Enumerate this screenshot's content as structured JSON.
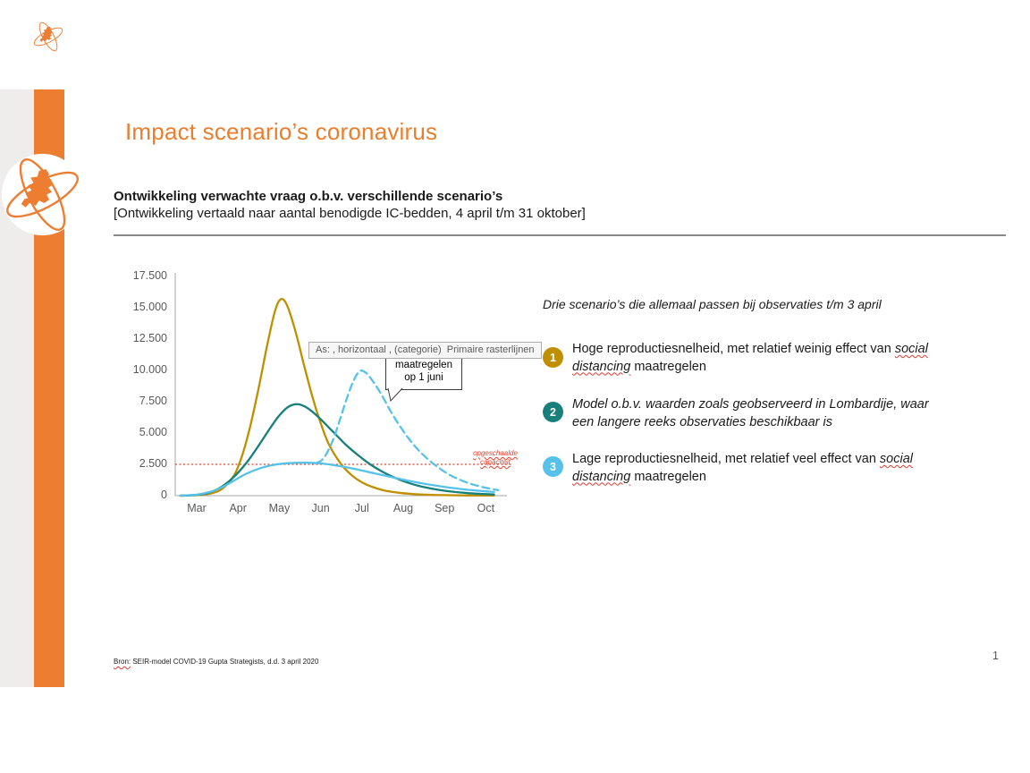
{
  "slide": {
    "title": "Impact scenario’s coronavirus",
    "subtitle_bold": "Ontwikkeling verwachte vraag o.b.v. verschillende scenario’s",
    "subtitle_detail": "[Ontwikkeling vertaald naar aantal benodigde IC-bedden, 4 april t/m 31 oktober]",
    "page_number": "1",
    "footer_segments": [
      {
        "text": "Bron:",
        "squiggle": true
      },
      {
        "text": " SEIR-model COVID-19 Gupta Strategists, d.d. 3 april 2020"
      }
    ]
  },
  "tooltip": {
    "text": "As: , horizontaal , (categorie)  Primaire rasterlijnen"
  },
  "chart_data": {
    "type": "line",
    "x_ticks": [
      "Mar",
      "Apr",
      "May",
      "Jun",
      "Jul",
      "Aug",
      "Sep",
      "Oct"
    ],
    "y_ticks": [
      "0",
      "2.500",
      "5.000",
      "7.500",
      "10.000",
      "12.500",
      "15.000",
      "17.500"
    ],
    "ylim": [
      0,
      17500
    ],
    "y_tick_step": 2500,
    "grid": "off",
    "capacity_line": {
      "value": 2500,
      "color": "#E8402C",
      "label_line1": "opgeschaalde",
      "label_line2": "capaciteit"
    },
    "annotations": {
      "callout": {
        "line1": "maatregelen",
        "line2": "op 1 juni"
      }
    },
    "series": [
      {
        "name": "scenario-1-hoge-reproductiesnelheid",
        "color": "#BF8F00",
        "dash": "none",
        "points": [
          [
            2.6,
            0
          ],
          [
            3.0,
            40
          ],
          [
            3.3,
            150
          ],
          [
            3.6,
            500
          ],
          [
            3.9,
            1600
          ],
          [
            4.1,
            3200
          ],
          [
            4.3,
            5600
          ],
          [
            4.5,
            8600
          ],
          [
            4.7,
            11900
          ],
          [
            4.9,
            14800
          ],
          [
            5.05,
            15700
          ],
          [
            5.2,
            15100
          ],
          [
            5.4,
            13000
          ],
          [
            5.6,
            10400
          ],
          [
            5.8,
            7900
          ],
          [
            6.0,
            5800
          ],
          [
            6.2,
            4100
          ],
          [
            6.5,
            2500
          ],
          [
            6.8,
            1500
          ],
          [
            7.1,
            900
          ],
          [
            7.5,
            450
          ],
          [
            7.9,
            230
          ],
          [
            8.4,
            100
          ],
          [
            9.0,
            40
          ],
          [
            9.6,
            15
          ],
          [
            10.2,
            5
          ]
        ]
      },
      {
        "name": "scenario-2-lombardije",
        "color": "#17807A",
        "dash": "none",
        "points": [
          [
            2.6,
            0
          ],
          [
            3.0,
            60
          ],
          [
            3.3,
            250
          ],
          [
            3.6,
            700
          ],
          [
            3.9,
            1500
          ],
          [
            4.2,
            2600
          ],
          [
            4.5,
            4000
          ],
          [
            4.8,
            5500
          ],
          [
            5.0,
            6400
          ],
          [
            5.2,
            7050
          ],
          [
            5.4,
            7300
          ],
          [
            5.6,
            7150
          ],
          [
            5.8,
            6700
          ],
          [
            6.0,
            6100
          ],
          [
            6.3,
            5100
          ],
          [
            6.6,
            4100
          ],
          [
            6.9,
            3250
          ],
          [
            7.2,
            2500
          ],
          [
            7.5,
            1900
          ],
          [
            7.8,
            1420
          ],
          [
            8.1,
            1050
          ],
          [
            8.4,
            760
          ],
          [
            8.7,
            550
          ],
          [
            9.0,
            390
          ],
          [
            9.3,
            280
          ],
          [
            9.6,
            195
          ],
          [
            9.9,
            135
          ],
          [
            10.2,
            95
          ]
        ]
      },
      {
        "name": "scenario-3-lage-reproductiesnelheid",
        "color": "#56C2E9",
        "dash": "none",
        "points": [
          [
            2.6,
            0
          ],
          [
            3.0,
            80
          ],
          [
            3.3,
            280
          ],
          [
            3.6,
            650
          ],
          [
            3.9,
            1200
          ],
          [
            4.2,
            1750
          ],
          [
            4.5,
            2150
          ],
          [
            4.8,
            2420
          ],
          [
            5.1,
            2560
          ],
          [
            5.4,
            2620
          ],
          [
            5.7,
            2630
          ],
          [
            6.0,
            2570
          ],
          [
            6.3,
            2450
          ],
          [
            6.6,
            2280
          ],
          [
            6.9,
            2080
          ],
          [
            7.2,
            1860
          ],
          [
            7.5,
            1640
          ],
          [
            7.8,
            1420
          ],
          [
            8.1,
            1210
          ],
          [
            8.4,
            1020
          ],
          [
            8.7,
            850
          ],
          [
            9.0,
            700
          ],
          [
            9.3,
            570
          ],
          [
            9.6,
            460
          ],
          [
            9.9,
            370
          ],
          [
            10.2,
            300
          ]
        ]
      },
      {
        "name": "scenario-maatregelen-op-1-juni",
        "color": "#56C2E9",
        "dash": "8 5",
        "points": [
          [
            5.9,
            2600
          ],
          [
            6.05,
            2900
          ],
          [
            6.2,
            3700
          ],
          [
            6.35,
            4900
          ],
          [
            6.5,
            6400
          ],
          [
            6.65,
            7900
          ],
          [
            6.8,
            9200
          ],
          [
            6.95,
            9950
          ],
          [
            7.1,
            9800
          ],
          [
            7.25,
            9200
          ],
          [
            7.45,
            8200
          ],
          [
            7.65,
            7000
          ],
          [
            7.85,
            5900
          ],
          [
            8.1,
            4700
          ],
          [
            8.35,
            3700
          ],
          [
            8.6,
            2900
          ],
          [
            8.85,
            2250
          ],
          [
            9.1,
            1700
          ],
          [
            9.35,
            1300
          ],
          [
            9.6,
            980
          ],
          [
            9.85,
            740
          ],
          [
            10.1,
            560
          ],
          [
            10.3,
            440
          ]
        ]
      }
    ]
  },
  "legend": {
    "heading": "Drie scenario’s die allemaal passen bij observaties t/m 3 april",
    "items": [
      {
        "number": "1",
        "color": "#BF8F00",
        "segments": [
          {
            "text": "Hoge reproductiesnelheid, met relatief weinig effect van "
          },
          {
            "text": "social",
            "italic": true,
            "squiggle": true
          },
          {
            "break": true
          },
          {
            "text": "distancing",
            "italic": true,
            "squiggle": true
          },
          {
            "text": " maatregelen"
          }
        ]
      },
      {
        "number": "2",
        "color": "#17807A",
        "segments": [
          {
            "text": "Model o.b.v. waarden zoals geobserveerd in Lombardije, waar",
            "italic": true
          },
          {
            "break": true
          },
          {
            "text": "een langere reeks observaties beschikbaar is",
            "italic": true
          }
        ]
      },
      {
        "number": "3",
        "color": "#56C2E9",
        "segments": [
          {
            "text": "Lage reproductiesnelheid, met relatief veel effect van "
          },
          {
            "text": "social",
            "italic": true,
            "squiggle": true
          },
          {
            "break": true
          },
          {
            "text": "distancing",
            "italic": true,
            "squiggle": true
          },
          {
            "text": " maatregelen"
          }
        ]
      }
    ]
  }
}
